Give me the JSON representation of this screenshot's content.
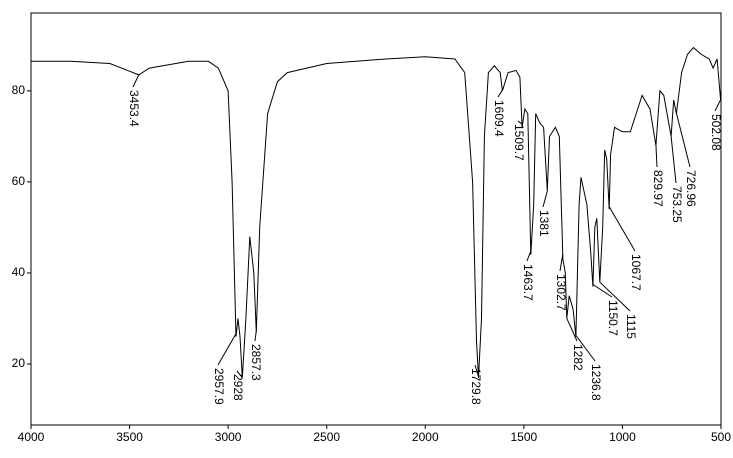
{
  "chart_data": {
    "type": "line",
    "x": [
      4000,
      3800,
      3600,
      3453,
      3400,
      3200,
      3100,
      3050,
      3000,
      2980,
      2960,
      2950,
      2940,
      2928,
      2910,
      2890,
      2870,
      2857,
      2840,
      2800,
      2750,
      2700,
      2500,
      2200,
      2000,
      1850,
      1800,
      1760,
      1740,
      1730,
      1715,
      1700,
      1680,
      1650,
      1620,
      1609,
      1580,
      1540,
      1520,
      1509,
      1495,
      1480,
      1465,
      1450,
      1440,
      1420,
      1400,
      1381,
      1370,
      1340,
      1320,
      1302,
      1290,
      1282,
      1270,
      1250,
      1236,
      1220,
      1210,
      1180,
      1160,
      1150,
      1140,
      1130,
      1115,
      1100,
      1090,
      1080,
      1067,
      1060,
      1040,
      1000,
      960,
      930,
      900,
      860,
      830,
      810,
      790,
      753,
      740,
      726,
      700,
      670,
      640,
      600,
      560,
      540,
      520,
      502,
      500
    ],
    "series": [
      {
        "color": "#000000",
        "values": [
          86.5,
          86.5,
          86,
          83.5,
          85,
          86.5,
          86.5,
          85,
          80,
          60,
          26,
          30,
          26,
          17,
          30,
          48,
          40,
          27,
          50,
          75,
          82,
          84,
          86,
          87,
          87.5,
          87,
          84,
          60,
          25,
          17,
          30,
          70,
          84,
          85.5,
          84,
          80,
          84,
          84.5,
          83,
          72,
          76,
          75,
          44,
          55,
          75,
          73,
          72,
          58,
          70,
          72,
          70,
          43,
          40,
          30,
          35,
          32,
          26,
          55,
          61,
          55,
          44,
          37,
          50,
          52,
          38,
          50,
          67,
          65,
          54,
          66,
          72,
          71,
          71,
          75,
          79,
          76,
          68,
          80,
          79,
          70,
          78,
          75,
          84,
          88,
          89.5,
          88,
          87,
          85,
          87,
          78,
          80
        ]
      }
    ],
    "xlim": [
      4000,
      500
    ],
    "ylim": [
      6.6,
      97.1
    ],
    "xticks": [
      4000,
      3500,
      3000,
      2500,
      2000,
      1500,
      1000,
      500
    ],
    "yticks": [
      20,
      40,
      60,
      80
    ],
    "annotations": [
      {
        "x": 3453.4,
        "label": "3453.4"
      },
      {
        "x": 2957.9,
        "label": "2957.9"
      },
      {
        "x": 2928,
        "label": "2928"
      },
      {
        "x": 2857.3,
        "label": "2857.3"
      },
      {
        "x": 1729.8,
        "label": "1729.8"
      },
      {
        "x": 1609.4,
        "label": "1609.4"
      },
      {
        "x": 1509.7,
        "label": "1509.7"
      },
      {
        "x": 1463.7,
        "label": "1463.7"
      },
      {
        "x": 1381,
        "label": "1381"
      },
      {
        "x": 1302.7,
        "label": "1302.7"
      },
      {
        "x": 1282,
        "label": "1282"
      },
      {
        "x": 1236.8,
        "label": "1236.8"
      },
      {
        "x": 1150.7,
        "label": "1150.7"
      },
      {
        "x": 1115,
        "label": "1115"
      },
      {
        "x": 1067.7,
        "label": "1067.7"
      },
      {
        "x": 829.97,
        "label": "829.97"
      },
      {
        "x": 753.25,
        "label": "753.25"
      },
      {
        "x": 726.96,
        "label": "726.96"
      },
      {
        "x": 502.08,
        "label": "502.08"
      }
    ]
  }
}
